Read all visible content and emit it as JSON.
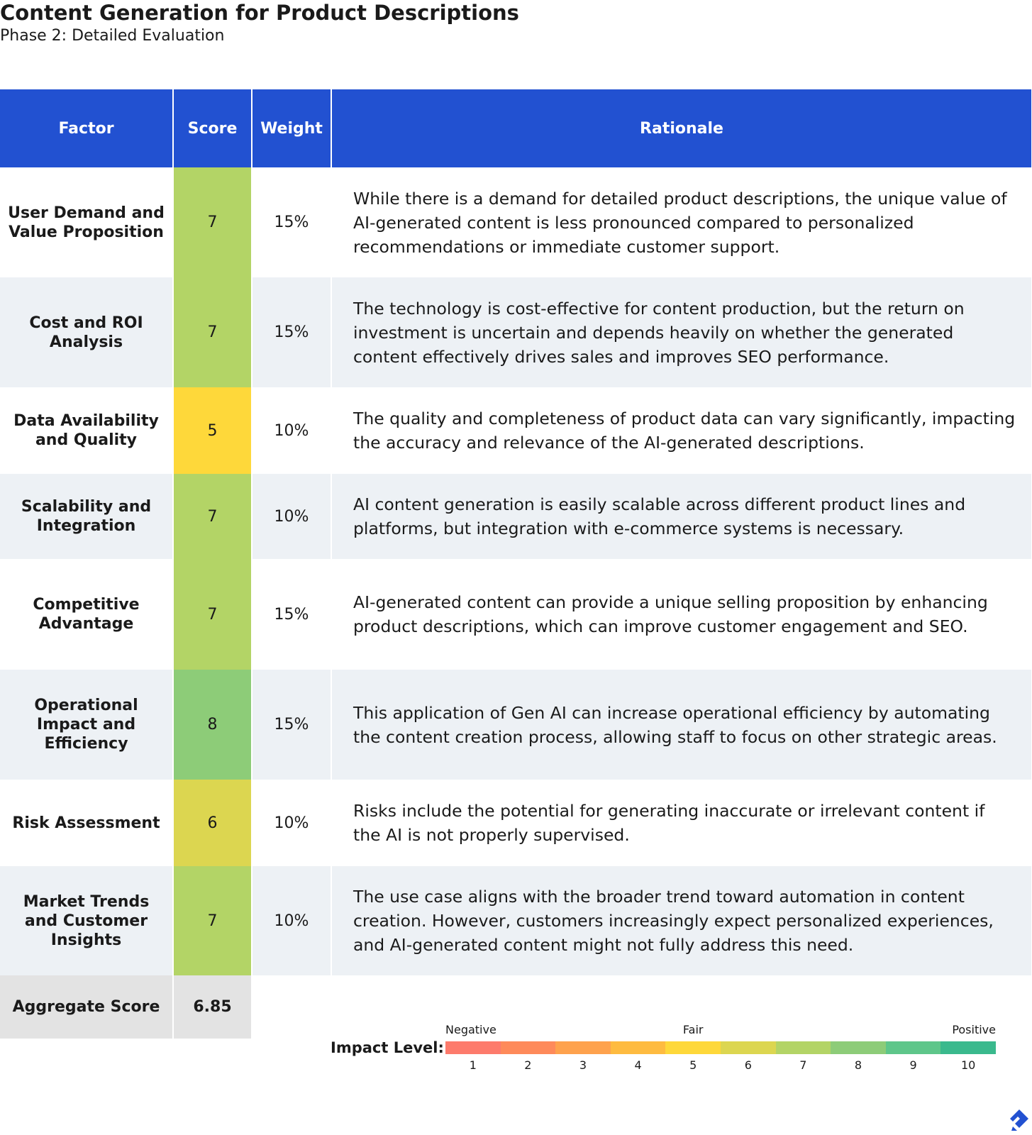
{
  "header": {
    "title": "Content Generation for Product Descriptions",
    "subtitle": "Phase 2: Detailed Evaluation"
  },
  "table": {
    "columns": [
      "Factor",
      "Score",
      "Weight",
      "Rationale"
    ],
    "rows": [
      {
        "factor": "User Demand and Value Proposition",
        "score": 7,
        "weight": "15%",
        "rationale": "While there is a demand for detailed product descriptions, the unique value of AI-generated content is less pronounced compared to personalized recommendations or immediate customer support."
      },
      {
        "factor": "Cost and ROI Analysis",
        "score": 7,
        "weight": "15%",
        "rationale": "The technology is cost-effective for content production, but the return on investment is uncertain and depends heavily on whether the generated content effectively drives sales and improves SEO performance."
      },
      {
        "factor": "Data Availability and Quality",
        "score": 5,
        "weight": "10%",
        "rationale": "The quality and completeness of product data can vary significantly, impacting the accuracy and relevance of the AI-generated descriptions."
      },
      {
        "factor": "Scalability and Integration",
        "score": 7,
        "weight": "10%",
        "rationale": "AI content generation is easily scalable across different product lines and platforms, but integration with e-commerce systems is necessary."
      },
      {
        "factor": "Competitive Advantage",
        "score": 7,
        "weight": "15%",
        "rationale": "AI-generated content can provide a unique selling proposition by enhancing product descriptions, which can improve customer engagement and SEO."
      },
      {
        "factor": "Operational Impact and Efficiency",
        "score": 8,
        "weight": "15%",
        "rationale": "This application of Gen AI can increase operational efficiency by automating the content creation process, allowing staff to focus on other strategic areas."
      },
      {
        "factor": "Risk Assessment",
        "score": 6,
        "weight": "10%",
        "rationale": "Risks include the potential for generating inaccurate or irrelevant content if the AI is not properly supervised."
      },
      {
        "factor": "Market Trends and Customer Insights",
        "score": 7,
        "weight": "10%",
        "rationale": "The use case aligns with the broader trend toward automation in content creation. However, customers increasingly expect personalized experiences, and AI-generated content might not fully address this need."
      }
    ],
    "aggregate": {
      "label": "Aggregate Score",
      "value": 6.85
    }
  },
  "legend": {
    "label": "Impact Level:",
    "scale_labels": [
      "Negative",
      "Fair",
      "Positive"
    ],
    "levels": [
      {
        "value": 1,
        "color": "#fd7b6c"
      },
      {
        "value": 2,
        "color": "#fe8a5a"
      },
      {
        "value": 3,
        "color": "#fea24d"
      },
      {
        "value": 4,
        "color": "#febb40"
      },
      {
        "value": 5,
        "color": "#fed83a"
      },
      {
        "value": 6,
        "color": "#dcd650"
      },
      {
        "value": 7,
        "color": "#b3d466"
      },
      {
        "value": 8,
        "color": "#8dcc78"
      },
      {
        "value": 9,
        "color": "#5ec68a"
      },
      {
        "value": 10,
        "color": "#3ab98d"
      }
    ]
  }
}
